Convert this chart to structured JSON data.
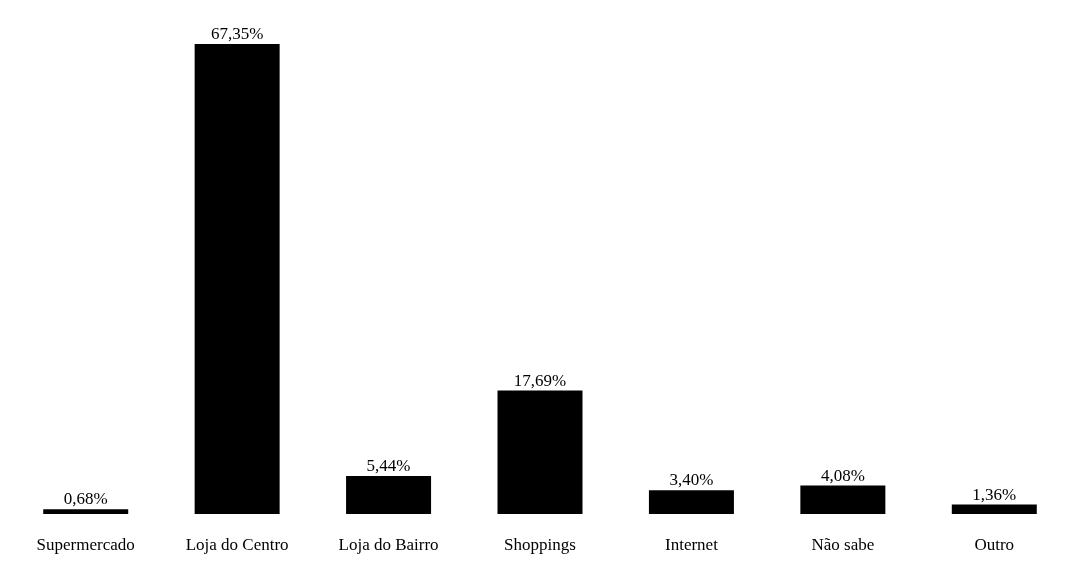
{
  "chart_data": {
    "type": "bar",
    "categories": [
      "Supermercado",
      "Loja do Centro",
      "Loja do Bairro",
      "Shoppings",
      "Internet",
      "Não sabe",
      "Outro"
    ],
    "values": [
      0.68,
      67.35,
      5.44,
      17.69,
      3.4,
      4.08,
      1.36
    ],
    "value_labels": [
      "0,68%",
      "67,35%",
      "5,44%",
      "17,69%",
      "3,40%",
      "4,08%",
      "1,36%"
    ],
    "color": "#000000",
    "grid": false
  }
}
